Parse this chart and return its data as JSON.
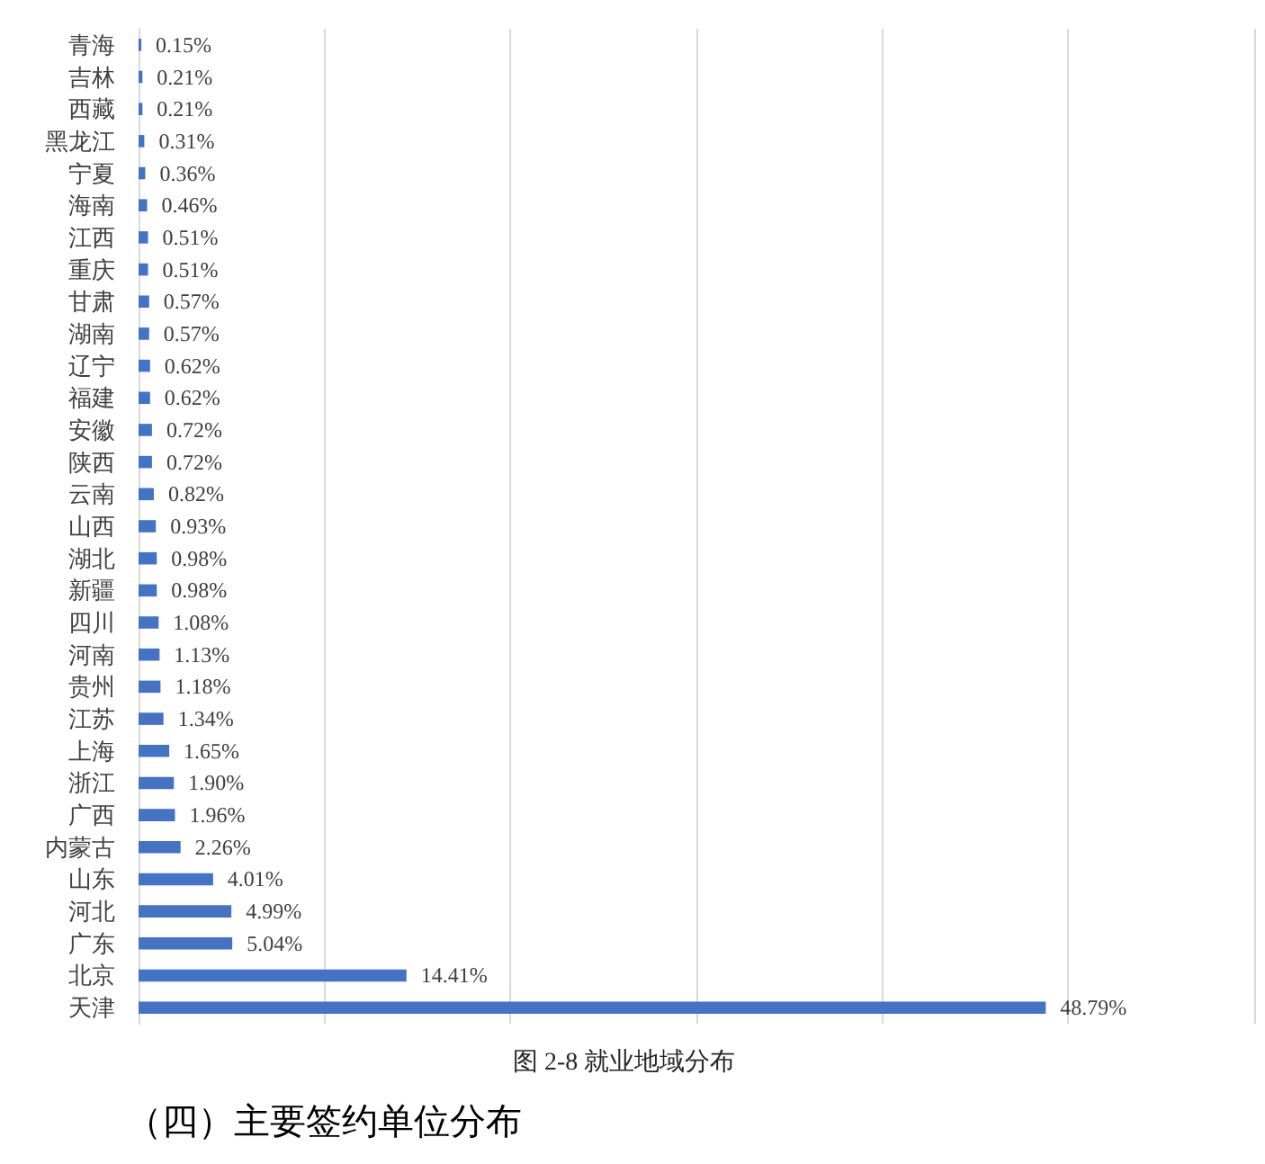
{
  "chart_data": {
    "type": "bar",
    "orientation": "horizontal",
    "title": "图 2-8 就业地域分布",
    "annotations": [
      "（四）主要签约单位分布"
    ],
    "categories": [
      "青海",
      "吉林",
      "西藏",
      "黑龙江",
      "宁夏",
      "海南",
      "江西",
      "重庆",
      "甘肃",
      "湖南",
      "辽宁",
      "福建",
      "安徽",
      "陕西",
      "云南",
      "山西",
      "湖北",
      "新疆",
      "四川",
      "河南",
      "贵州",
      "江苏",
      "上海",
      "浙江",
      "广西",
      "内蒙古",
      "山东",
      "河北",
      "广东",
      "北京",
      "天津"
    ],
    "values": [
      0.15,
      0.21,
      0.21,
      0.31,
      0.36,
      0.46,
      0.51,
      0.51,
      0.57,
      0.57,
      0.62,
      0.62,
      0.72,
      0.72,
      0.82,
      0.93,
      0.98,
      0.98,
      1.08,
      1.13,
      1.18,
      1.34,
      1.65,
      1.9,
      1.96,
      2.26,
      4.01,
      4.99,
      5.04,
      14.41,
      48.79
    ],
    "value_labels": [
      "0.15%",
      "0.21%",
      "0.21%",
      "0.31%",
      "0.36%",
      "0.46%",
      "0.51%",
      "0.51%",
      "0.57%",
      "0.57%",
      "0.62%",
      "0.62%",
      "0.72%",
      "0.72%",
      "0.82%",
      "0.93%",
      "0.98%",
      "0.98%",
      "1.08%",
      "1.13%",
      "1.18%",
      "1.34%",
      "1.65%",
      "1.90%",
      "1.96%",
      "2.26%",
      "4.01%",
      "4.99%",
      "5.04%",
      "14.41%",
      "48.79%"
    ],
    "color": "#4472c4",
    "xlim": [
      0,
      60
    ],
    "xticks": [
      {
        "value": 0,
        "label": null
      },
      {
        "value": 10,
        "label": null
      },
      {
        "value": 20,
        "label": null
      },
      {
        "value": 30,
        "label": null
      },
      {
        "value": 40,
        "label": null
      },
      {
        "value": 50,
        "label": null
      },
      {
        "value": 60,
        "label": null
      }
    ],
    "grid": "x",
    "tick_labels": "y"
  }
}
